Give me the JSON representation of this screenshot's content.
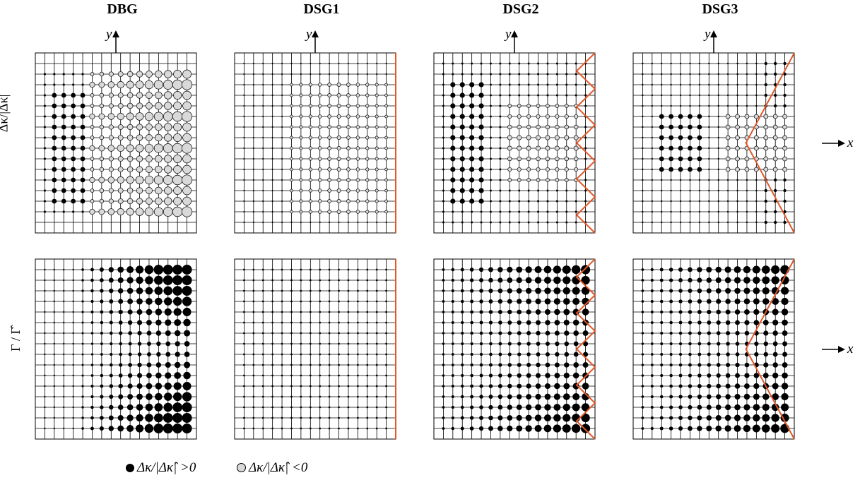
{
  "columns": [
    "DBG",
    "DSG1",
    "DSG2",
    "DSG3"
  ],
  "row_labels": [
    "Δκ/|Δκ̂|",
    "Γ / Γ̂"
  ],
  "axis": {
    "y": "y",
    "x": "x"
  },
  "legend": {
    "positive": "Δκ/|Δκ̂| >0",
    "negative": "Δκ/|Δκ̂| <0"
  },
  "colors": {
    "positive": "#000000",
    "negative": "#d9d9d9",
    "boundary": "#e2582a",
    "grid": "#000000"
  },
  "grid_size": 17,
  "panels": {
    "DBG": {
      "top": {
        "kind": "dbg_top"
      },
      "bottom": {
        "kind": "dbg_bottom"
      }
    },
    "DSG1": {
      "top": {
        "kind": "dsg1_top"
      },
      "bottom": {
        "kind": "dsg1_bottom"
      }
    },
    "DSG2": {
      "top": {
        "kind": "dsg2_top"
      },
      "bottom": {
        "kind": "dsg2_bottom"
      }
    },
    "DSG3": {
      "top": {
        "kind": "dsg3_top"
      },
      "bottom": {
        "kind": "dsg3_bottom"
      }
    }
  }
}
